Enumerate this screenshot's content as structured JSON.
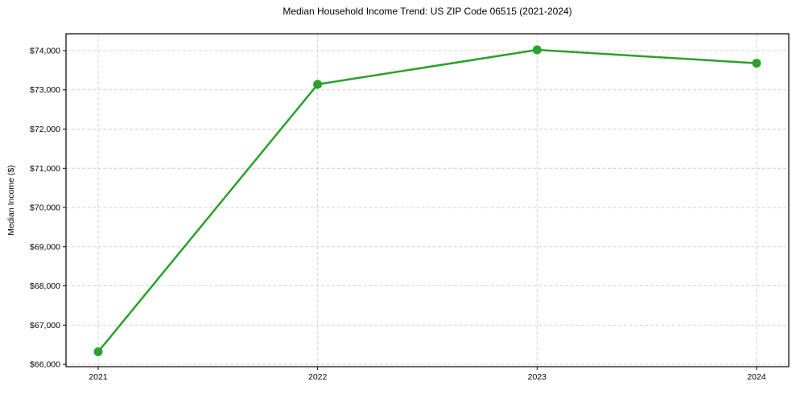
{
  "chart_data": {
    "type": "line",
    "title": "Median Household Income Trend: US ZIP Code 06515 (2021-2024)",
    "xlabel": "",
    "ylabel": "Median Income ($)",
    "categories": [
      "2021",
      "2022",
      "2023",
      "2024"
    ],
    "series": [
      {
        "name": "median-income",
        "values": [
          66320,
          73140,
          74020,
          73680
        ],
        "color": "#2ca02c"
      }
    ],
    "ylim": [
      65940,
      74430
    ],
    "yticks": [
      66000,
      67000,
      68000,
      69000,
      70000,
      71000,
      72000,
      73000,
      74000
    ],
    "ytick_prefix": "$",
    "grid": true,
    "grid_color": "#cccccc",
    "grid_dash": "4 2.6",
    "spine_color": "#000000",
    "background": "#ffffff",
    "line_width": 2.5,
    "marker_radius": 5.5,
    "legend": "none"
  }
}
